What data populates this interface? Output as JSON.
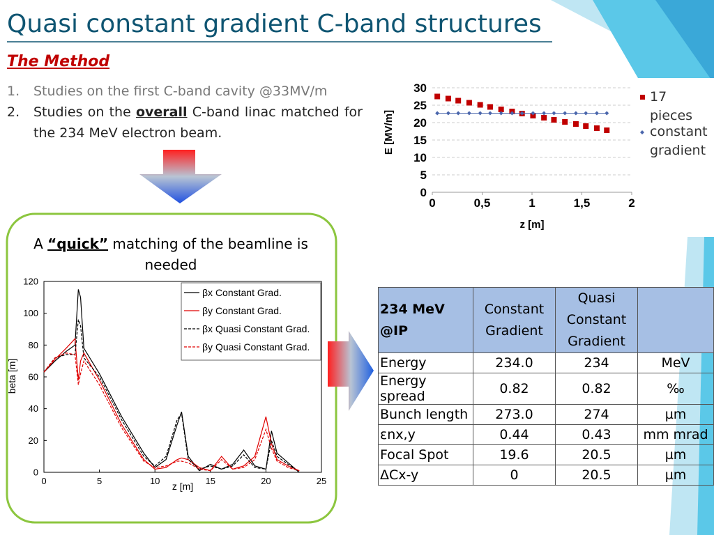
{
  "header": {
    "title": "Quasi constant gradient C-band structures",
    "subtitle": "The Method"
  },
  "list": [
    {
      "number": "1.",
      "parts": [
        "Studies on the first C-band cavity @33MV/m"
      ]
    },
    {
      "number": "2.",
      "parts": [
        "Studies on the ",
        "overall",
        " C-band linac matched for the 234 MeV electron beam."
      ]
    }
  ],
  "note": {
    "parts": [
      "A ",
      "“quick”",
      " matching of the beamline is needed"
    ]
  },
  "chart_data": [
    {
      "type": "scatter",
      "ylabel": "E [MV/m]",
      "xlabel": "z [m]",
      "xlim": [
        0,
        2
      ],
      "ylim": [
        0,
        30
      ],
      "xticks": [
        0,
        {
          "value": 0.5,
          "label": "0,5"
        },
        1,
        {
          "value": 1.5,
          "label": "1,5"
        },
        2
      ],
      "yticks": [
        0,
        5,
        10,
        15,
        20,
        25,
        30
      ],
      "grid": true,
      "x": [
        0.05,
        0.16,
        0.26,
        0.37,
        0.48,
        0.58,
        0.69,
        0.8,
        0.9,
        1.01,
        1.12,
        1.22,
        1.33,
        1.44,
        1.54,
        1.65,
        1.75
      ],
      "series": [
        {
          "name": "17 pieces",
          "color": "#c00000",
          "marker": "square",
          "values": [
            27.5,
            26.9,
            26.3,
            25.7,
            25.1,
            24.5,
            23.8,
            23.2,
            22.6,
            22.0,
            21.4,
            20.8,
            20.2,
            19.6,
            19.0,
            18.4,
            17.8
          ]
        },
        {
          "name": "constant gradient",
          "color": "#4a66ac",
          "marker": "diamond",
          "values": [
            22.7,
            22.7,
            22.7,
            22.7,
            22.7,
            22.7,
            22.7,
            22.7,
            22.7,
            22.7,
            22.7,
            22.7,
            22.7,
            22.7,
            22.7,
            22.7,
            22.7
          ]
        }
      ]
    },
    {
      "type": "line",
      "ylabel": "beta [m]",
      "xlabel": "z [m]",
      "xlim": [
        0,
        25
      ],
      "ylim": [
        0,
        120
      ],
      "xticks": [
        0,
        5,
        10,
        15,
        20,
        25
      ],
      "yticks": [
        0,
        20,
        40,
        60,
        80,
        100,
        120
      ],
      "x": [
        0,
        1,
        2,
        2.8,
        3.1,
        3.3,
        3.6,
        5,
        7,
        9,
        10,
        11,
        12,
        12.4,
        13,
        14,
        15,
        16,
        17,
        18,
        19,
        20,
        20.5,
        21,
        22,
        23
      ],
      "series": [
        {
          "name": "βx Constant Grad.",
          "color": "#000000",
          "dash": false,
          "values": [
            63,
            70,
            76,
            80,
            115,
            110,
            78,
            62,
            35,
            12,
            3,
            8,
            30,
            38,
            10,
            1,
            5,
            2,
            5,
            14,
            4,
            2,
            26,
            12,
            6,
            0
          ]
        },
        {
          "name": "βy Constant Grad.",
          "color": "#e00000",
          "dash": false,
          "values": [
            63,
            71,
            78,
            84,
            58,
            70,
            75,
            58,
            30,
            8,
            2,
            3,
            8,
            9,
            8,
            3,
            1,
            10,
            2,
            4,
            10,
            35,
            18,
            8,
            4,
            1
          ]
        },
        {
          "name": "βx Quasi Constant Grad.",
          "color": "#000000",
          "dash": true,
          "values": [
            63,
            72,
            74,
            74,
            96,
            92,
            72,
            60,
            33,
            10,
            4,
            10,
            33,
            37,
            8,
            2,
            4,
            2,
            4,
            11,
            3,
            2,
            20,
            10,
            5,
            0
          ]
        },
        {
          "name": "βy Quasi Constant Grad.",
          "color": "#e00000",
          "dash": true,
          "values": [
            63,
            72,
            75,
            74,
            55,
            62,
            70,
            55,
            28,
            7,
            3,
            4,
            7,
            7,
            6,
            2,
            1,
            8,
            2,
            3,
            8,
            27,
            15,
            7,
            3,
            1
          ]
        }
      ]
    }
  ],
  "table": {
    "header": [
      "234 MeV @IP",
      "Constant Gradient",
      "Quasi Constant Gradient"
    ],
    "rows": [
      [
        "Energy",
        "234.0",
        "234",
        "MeV"
      ],
      [
        "Energy spread",
        "0.82",
        "0.82",
        "‰"
      ],
      [
        "Bunch length",
        "273.0",
        "274",
        "µm"
      ],
      [
        "εnx,y",
        "0.44",
        "0.43",
        "mm mrad"
      ],
      [
        "Focal Spot",
        "19.6",
        "20.5",
        "µm"
      ],
      [
        "ΔCx-y",
        "0",
        "20.5",
        "µm"
      ]
    ]
  }
}
